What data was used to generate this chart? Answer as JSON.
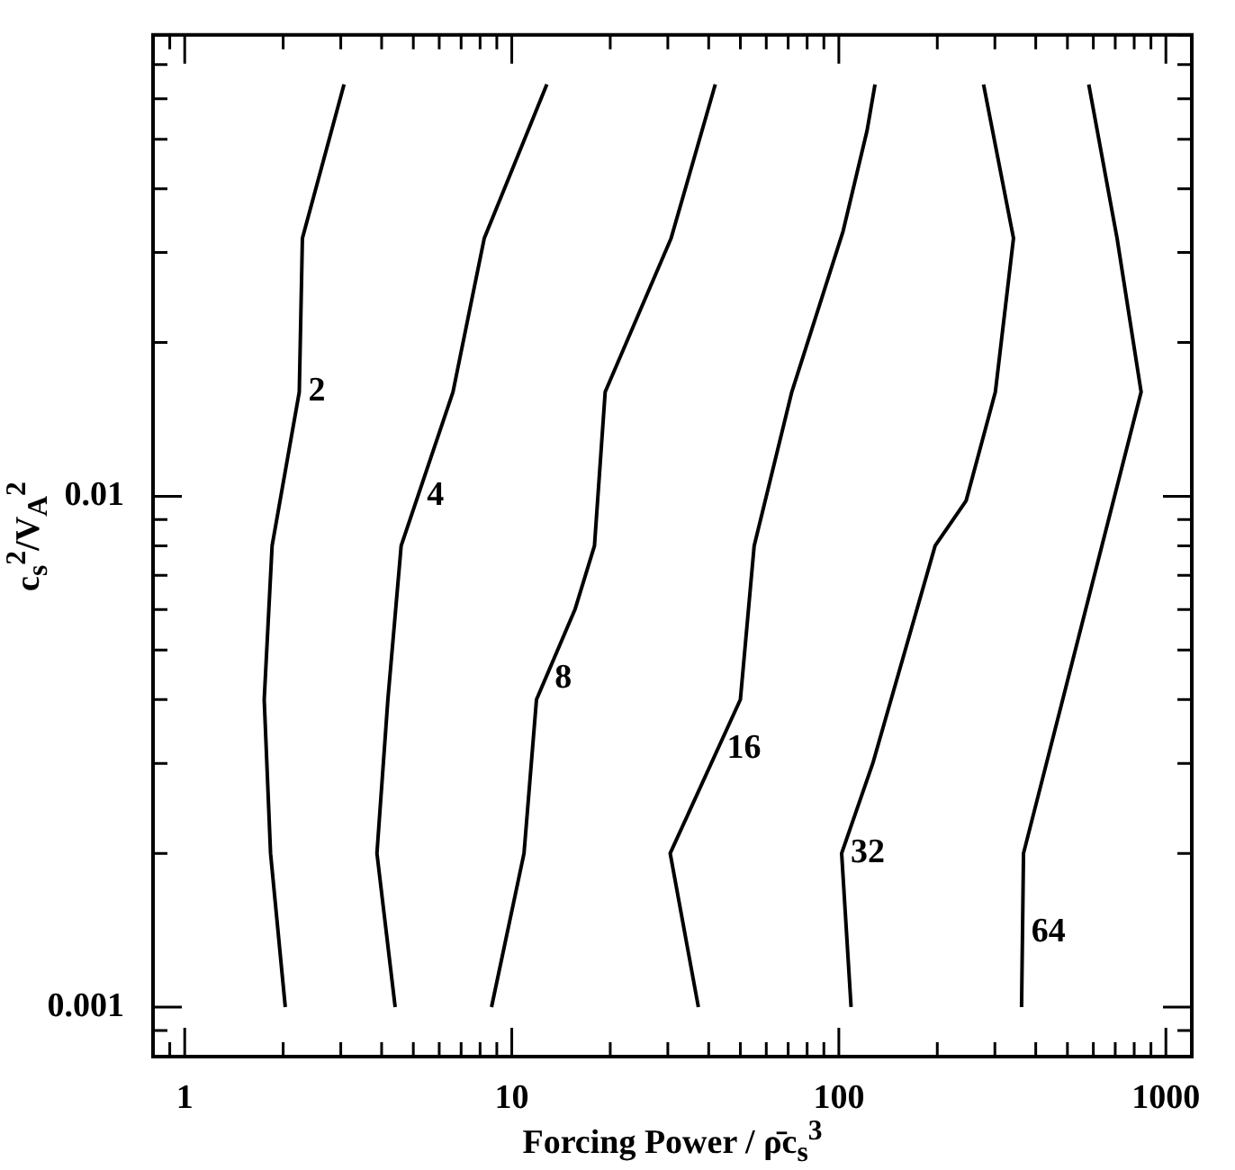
{
  "chart_data": {
    "type": "line",
    "xlabel": "Forcing Power / ρ̄c$_{s}$$^{3}$",
    "ylabel": "c$_{s}$$^{2}$/V$_{A}$$^{2}$",
    "log": "xy",
    "grid": false,
    "legend": false,
    "marker": "none",
    "line_style": "solid",
    "xlim": [
      0.8,
      1200
    ],
    "ylim": [
      0.0008,
      0.08
    ],
    "xticks": [
      {
        "value": 0.9,
        "label": null
      },
      1,
      {
        "value": 2,
        "label": null
      },
      {
        "value": 3,
        "label": null
      },
      {
        "value": 4,
        "label": null
      },
      {
        "value": 5,
        "label": null
      },
      {
        "value": 6,
        "label": null
      },
      {
        "value": 7,
        "label": null
      },
      {
        "value": 8,
        "label": null
      },
      {
        "value": 9,
        "label": null
      },
      10,
      {
        "value": 20,
        "label": null
      },
      {
        "value": 30,
        "label": null
      },
      {
        "value": 40,
        "label": null
      },
      {
        "value": 50,
        "label": null
      },
      {
        "value": 60,
        "label": null
      },
      {
        "value": 70,
        "label": null
      },
      {
        "value": 80,
        "label": null
      },
      {
        "value": 90,
        "label": null
      },
      100,
      {
        "value": 200,
        "label": null
      },
      {
        "value": 300,
        "label": null
      },
      {
        "value": 400,
        "label": null
      },
      {
        "value": 500,
        "label": null
      },
      {
        "value": 600,
        "label": null
      },
      {
        "value": 700,
        "label": null
      },
      {
        "value": 800,
        "label": null
      },
      {
        "value": 900,
        "label": null
      },
      1000
    ],
    "yticks": [
      {
        "value": 0.0009,
        "label": null
      },
      0.001,
      {
        "value": 0.002,
        "label": null
      },
      {
        "value": 0.003,
        "label": null
      },
      {
        "value": 0.004,
        "label": null
      },
      {
        "value": 0.005,
        "label": null
      },
      {
        "value": 0.006,
        "label": null
      },
      {
        "value": 0.007,
        "label": null
      },
      {
        "value": 0.008,
        "label": null
      },
      {
        "value": 0.009,
        "label": null
      },
      0.01,
      {
        "value": 0.02,
        "label": null
      },
      {
        "value": 0.03,
        "label": null
      },
      {
        "value": 0.04,
        "label": null
      },
      {
        "value": 0.05,
        "label": null
      },
      {
        "value": 0.06,
        "label": null
      },
      {
        "value": 0.07,
        "label": null
      },
      {
        "value": 0.08,
        "label": null
      }
    ],
    "series": [
      {
        "color": "#000000",
        "x": [
          2.03,
          1.83,
          1.75,
          1.85,
          2.24,
          2.29,
          3.07
        ],
        "values": [
          0.001,
          0.002,
          0.004,
          0.008,
          0.016,
          0.032,
          0.064
        ]
      },
      {
        "color": "#000000",
        "x": [
          4.4,
          3.87,
          4.18,
          4.59,
          6.61,
          8.24,
          12.8
        ],
        "values": [
          0.001,
          0.002,
          0.004,
          0.008,
          0.016,
          0.032,
          0.064
        ]
      },
      {
        "color": "#000000",
        "x": [
          8.67,
          10.9,
          11.9,
          15.6,
          17.9,
          19.3,
          30.7,
          41.9
        ],
        "values": [
          0.001,
          0.002,
          0.004,
          0.006,
          0.008,
          0.016,
          0.032,
          0.064
        ]
      },
      {
        "color": "#000000",
        "x": [
          37.2,
          30.5,
          50,
          55.1,
          71.8,
          103,
          122,
          129
        ],
        "values": [
          0.001,
          0.002,
          0.004,
          0.008,
          0.016,
          0.033,
          0.052,
          0.064
        ]
      },
      {
        "color": "#000000",
        "x": [
          109,
          102,
          127,
          197,
          245,
          301,
          342,
          277
        ],
        "values": [
          0.001,
          0.002,
          0.003,
          0.008,
          0.0098,
          0.016,
          0.032,
          0.064
        ]
      },
      {
        "color": "#000000",
        "x": [
          362,
          367,
          840,
          709,
          581
        ],
        "values": [
          0.001,
          0.002,
          0.016,
          0.032,
          0.064
        ]
      }
    ],
    "annotations": [
      {
        "text": "2",
        "x": 2.24,
        "y": 0.016
      },
      {
        "text": "4",
        "x": 5.16,
        "y": 0.01
      },
      {
        "text": "8",
        "x": 12.7,
        "y": 0.0044
      },
      {
        "text": "16",
        "x": 42.7,
        "y": 0.0032
      },
      {
        "text": "32",
        "x": 102,
        "y": 0.002
      },
      {
        "text": "64",
        "x": 364,
        "y": 0.0014
      }
    ]
  }
}
